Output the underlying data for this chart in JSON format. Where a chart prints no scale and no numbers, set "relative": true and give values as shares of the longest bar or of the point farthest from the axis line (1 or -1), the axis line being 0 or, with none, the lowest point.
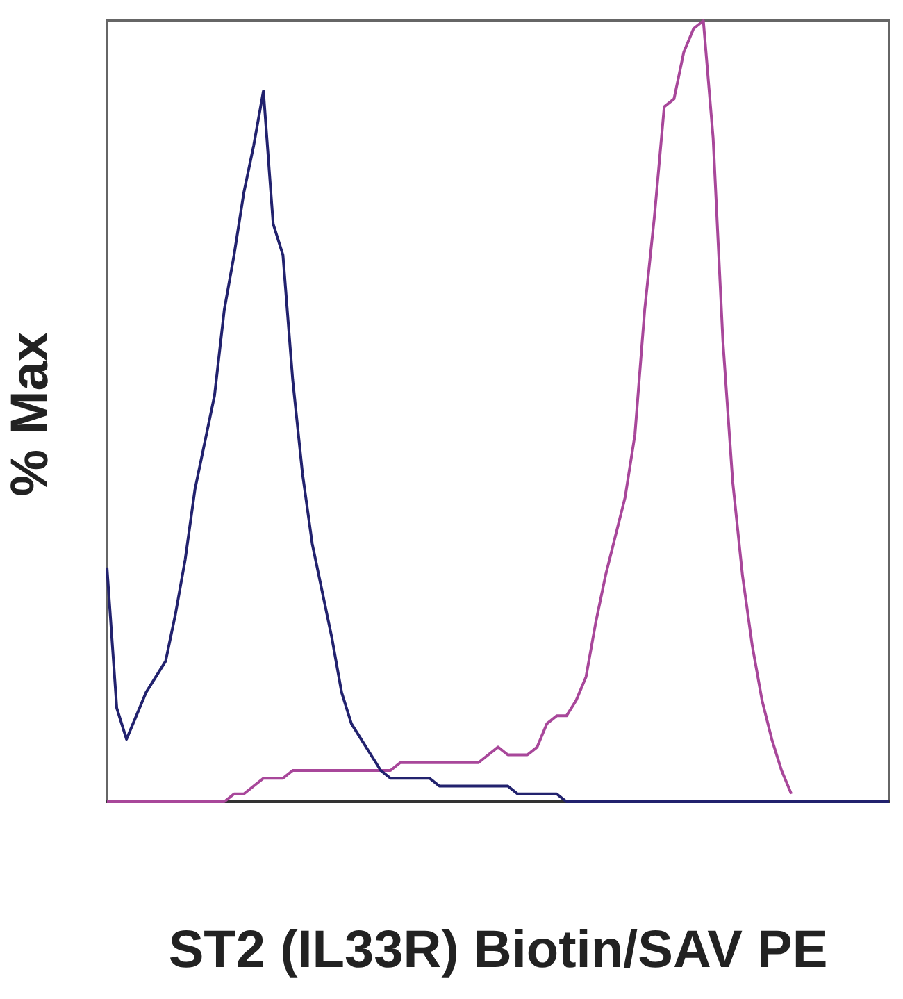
{
  "chart_data": {
    "type": "line",
    "relative": true,
    "xlabel": "ST2 (IL33R) Biotin/SAV PE",
    "ylabel": "% Max",
    "marker": "none",
    "categories": [
      null,
      null,
      null,
      null,
      null,
      null,
      null,
      null,
      null,
      null,
      null,
      null,
      null,
      null,
      null,
      null,
      null,
      null,
      null,
      null,
      null,
      null,
      null,
      null,
      null,
      null,
      null,
      null,
      null,
      null,
      null,
      null,
      null,
      null,
      null,
      null,
      null,
      null,
      null,
      null,
      null,
      null,
      null,
      null,
      null,
      null,
      null,
      null,
      null,
      null,
      null,
      null,
      null,
      null,
      null,
      null,
      null,
      null,
      null,
      null,
      null,
      null,
      null,
      null,
      null,
      null,
      null,
      null,
      null,
      null,
      null,
      null,
      null,
      null,
      null,
      null,
      null,
      null,
      null,
      null,
      null
    ],
    "series": [
      {
        "color": "#22226e",
        "values": [
          0.3,
          0.12,
          0.08,
          0.11,
          0.14,
          0.16,
          0.18,
          0.24,
          0.31,
          0.4,
          0.46,
          0.52,
          0.63,
          0.7,
          0.78,
          0.84,
          0.91,
          0.74,
          0.7,
          0.54,
          0.42,
          0.33,
          0.27,
          0.21,
          0.14,
          0.1,
          0.08,
          0.06,
          0.04,
          0.03,
          0.03,
          0.03,
          0.03,
          0.03,
          0.02,
          0.02,
          0.02,
          0.02,
          0.02,
          0.02,
          0.02,
          0.02,
          0.01,
          0.01,
          0.01,
          0.01,
          0.01,
          0.0,
          0.0,
          0,
          0,
          0,
          0,
          0,
          0,
          0,
          0,
          0,
          0,
          0,
          0,
          0,
          0,
          0,
          0,
          0,
          0,
          0,
          0,
          0,
          0,
          0,
          0,
          0,
          0,
          0,
          0,
          0,
          0,
          0,
          0
        ]
      },
      {
        "color": "#a8479a",
        "values": [
          0,
          0,
          0,
          0,
          0,
          0,
          0,
          0,
          0,
          0,
          0,
          0.0,
          0.0,
          0.01,
          0.01,
          0.02,
          0.03,
          0.03,
          0.03,
          0.04,
          0.04,
          0.04,
          0.04,
          0.04,
          0.04,
          0.04,
          0.04,
          0.04,
          0.04,
          0.04,
          0.05,
          0.05,
          0.05,
          0.05,
          0.05,
          0.05,
          0.05,
          0.05,
          0.05,
          0.06,
          0.07,
          0.06,
          0.06,
          0.06,
          0.07,
          0.1,
          0.11,
          0.11,
          0.13,
          0.16,
          0.23,
          0.29,
          0.34,
          0.39,
          0.47,
          0.63,
          0.75,
          0.89,
          0.9,
          0.96,
          0.99,
          1.0,
          0.85,
          0.59,
          0.41,
          0.29,
          0.2,
          0.13,
          0.08,
          0.04,
          0.01,
          null,
          null,
          null,
          null,
          null,
          null,
          null,
          null,
          null,
          null
        ]
      }
    ]
  }
}
